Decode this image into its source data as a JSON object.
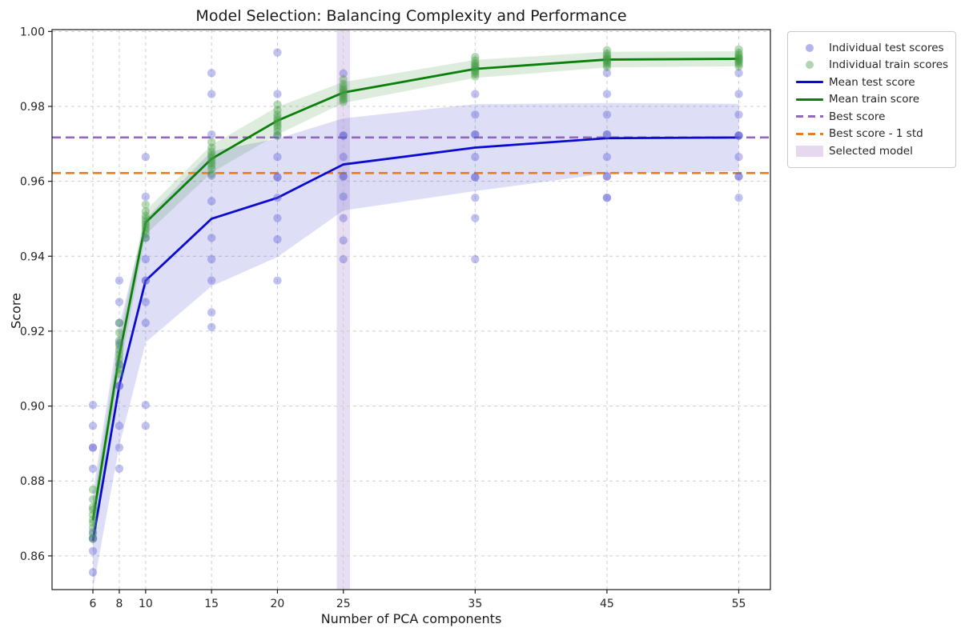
{
  "chart_data": {
    "type": "line",
    "title": "Model Selection: Balancing Complexity and Performance",
    "xlabel": "Number of PCA components",
    "ylabel": "Score",
    "xlim": [
      2.9,
      57.4
    ],
    "ylim": [
      0.851,
      1.0005
    ],
    "xticks": [
      6,
      8,
      10,
      15,
      20,
      25,
      35,
      45,
      55
    ],
    "yticks": [
      0.86,
      0.88,
      0.9,
      0.92,
      0.94,
      0.96,
      0.98,
      1.0
    ],
    "ytick_labels": [
      "0.86",
      "0.88",
      "0.90",
      "0.92",
      "0.94",
      "0.96",
      "0.98",
      "1.00"
    ],
    "grid": true,
    "grid_color": "#cccccc",
    "x": [
      6,
      8,
      10,
      15,
      20,
      25,
      35,
      45,
      55
    ],
    "series": [
      {
        "name": "Mean test score",
        "color": "#0b0bd0",
        "line_width": 2.8,
        "values": [
          0.864,
          0.9054,
          0.9335,
          0.95,
          0.9556,
          0.9645,
          0.969,
          0.9715,
          0.9717
        ],
        "std": [
          0.013,
          0.016,
          0.0165,
          0.018,
          0.0158,
          0.0123,
          0.0116,
          0.0094,
          0.009
        ],
        "band_color": "#5858d8",
        "band_opacity": 0.2
      },
      {
        "name": "Mean train score",
        "color": "#0a7f0a",
        "line_width": 2.8,
        "values": [
          0.8695,
          0.9135,
          0.949,
          0.966,
          0.9762,
          0.9837,
          0.99,
          0.9925,
          0.9927
        ],
        "std": [
          0.0047,
          0.0048,
          0.0032,
          0.0037,
          0.0037,
          0.0028,
          0.0024,
          0.0021,
          0.002
        ],
        "band_color": "#2e8b2e",
        "band_opacity": 0.16
      }
    ],
    "scatter": [
      {
        "name": "Individual test scores",
        "color": "#5d5dd6",
        "opacity": 0.38,
        "radius": 5.2,
        "groups": [
          {
            "x": 6,
            "ys": [
              0.9003,
              0.8947,
              0.8889,
              0.8889,
              0.8833,
              0.8664,
              0.8647,
              0.8647,
              0.8613,
              0.8556
            ]
          },
          {
            "x": 8,
            "ys": [
              0.9335,
              0.9278,
              0.9222,
              0.9168,
              0.9112,
              0.9054,
              0.9054,
              0.8947,
              0.8889,
              0.8833
            ]
          },
          {
            "x": 10,
            "ys": [
              0.9665,
              0.9559,
              0.9449,
              0.9392,
              0.9335,
              0.9335,
              0.9278,
              0.9222,
              0.9003,
              0.8947
            ]
          },
          {
            "x": 15,
            "ys": [
              0.9889,
              0.9833,
              0.9725,
              0.9615,
              0.9547,
              0.9449,
              0.9392,
              0.9335,
              0.925,
              0.9211
            ]
          },
          {
            "x": 20,
            "ys": [
              0.9944,
              0.9833,
              0.9722,
              0.9665,
              0.9611,
              0.9611,
              0.9556,
              0.9502,
              0.9445,
              0.9335
            ]
          },
          {
            "x": 25,
            "ys": [
              0.9888,
              0.9722,
              0.9722,
              0.9665,
              0.9613,
              0.9613,
              0.9559,
              0.9502,
              0.9442,
              0.9392
            ]
          },
          {
            "x": 35,
            "ys": [
              0.9833,
              0.9778,
              0.9725,
              0.9725,
              0.9665,
              0.9611,
              0.9611,
              0.9556,
              0.9502,
              0.9392
            ]
          },
          {
            "x": 45,
            "ys": [
              0.9889,
              0.9833,
              0.9778,
              0.9725,
              0.9725,
              0.9665,
              0.9613,
              0.9613,
              0.9556,
              0.9556
            ]
          },
          {
            "x": 55,
            "ys": [
              0.9889,
              0.9833,
              0.9778,
              0.9722,
              0.9722,
              0.9722,
              0.9665,
              0.9613,
              0.9613,
              0.9556
            ]
          }
        ]
      },
      {
        "name": "Individual train scores",
        "color": "#3f9b3f",
        "opacity": 0.38,
        "radius": 5.2,
        "groups": [
          {
            "x": 6,
            "ys": [
              0.8777,
              0.8751,
              0.873,
              0.8723,
              0.871,
              0.8697,
              0.8688,
              0.8675,
              0.8659,
              0.8645
            ]
          },
          {
            "x": 8,
            "ys": [
              0.9222,
              0.9196,
              0.9175,
              0.9162,
              0.915,
              0.9138,
              0.9125,
              0.911,
              0.9098,
              0.9086
            ]
          },
          {
            "x": 10,
            "ys": [
              0.9538,
              0.952,
              0.9508,
              0.95,
              0.9492,
              0.9485,
              0.9478,
              0.947,
              0.946,
              0.9449
            ]
          },
          {
            "x": 15,
            "ys": [
              0.9705,
              0.969,
              0.9678,
              0.967,
              0.9663,
              0.9656,
              0.9649,
              0.9642,
              0.9633,
              0.962
            ]
          },
          {
            "x": 20,
            "ys": [
              0.9805,
              0.979,
              0.9778,
              0.977,
              0.9763,
              0.9757,
              0.975,
              0.9743,
              0.9733,
              0.9723
            ]
          },
          {
            "x": 25,
            "ys": [
              0.9872,
              0.986,
              0.9851,
              0.9845,
              0.984,
              0.9835,
              0.983,
              0.9824,
              0.9818,
              0.9812
            ]
          },
          {
            "x": 35,
            "ys": [
              0.9932,
              0.9922,
              0.9915,
              0.991,
              0.9905,
              0.9901,
              0.9897,
              0.9893,
              0.9887,
              0.988
            ]
          },
          {
            "x": 45,
            "ys": [
              0.995,
              0.9941,
              0.9935,
              0.993,
              0.9927,
              0.9924,
              0.992,
              0.9916,
              0.9911,
              0.9905
            ]
          },
          {
            "x": 55,
            "ys": [
              0.9952,
              0.9943,
              0.9937,
              0.9932,
              0.9929,
              0.9926,
              0.9922,
              0.9918,
              0.9913,
              0.9907
            ]
          }
        ]
      }
    ],
    "reference_lines": [
      {
        "name": "Best score",
        "value": 0.9717,
        "color": "#9467bd",
        "dash": "11 6",
        "line_width": 2.6
      },
      {
        "name": "Best score - 1 std",
        "value": 0.9622,
        "color": "#e87f1e",
        "dash": "11 6",
        "line_width": 2.6
      }
    ],
    "selected_model": {
      "x": 25,
      "half_width": 0.5,
      "color": "#9467bd",
      "opacity": 0.22,
      "label": "Selected model"
    },
    "legend_position": "outside-top-right"
  },
  "legend": {
    "items": [
      {
        "label": "Individual test scores",
        "marker": "dot",
        "color": "#b4b4ec"
      },
      {
        "label": "Individual train scores",
        "marker": "dot",
        "color": "#b2d4b2"
      },
      {
        "label": "Mean test score",
        "marker": "line",
        "color": "#0b0bd0"
      },
      {
        "label": "Mean train score",
        "marker": "line",
        "color": "#0a7f0a"
      },
      {
        "label": "Best score",
        "marker": "dash",
        "color": "#9467bd"
      },
      {
        "label": "Best score - 1 std",
        "marker": "dash",
        "color": "#e87f1e"
      },
      {
        "label": "Selected model",
        "marker": "patch",
        "color": "#e6d9ef"
      }
    ]
  }
}
